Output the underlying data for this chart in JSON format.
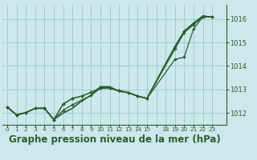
{
  "background_color": "#cce8ec",
  "grid_color": "#9ecdd4",
  "line_color": "#2d5e2d",
  "xlabel": "Graphe pression niveau de la mer (hPa)",
  "xlabel_fontsize": 8.5,
  "ylim": [
    1011.5,
    1016.6
  ],
  "yticks": [
    1012,
    1013,
    1014,
    1015,
    1016
  ],
  "xlim": [
    -0.5,
    23.5
  ],
  "xtick_labels": [
    "0",
    "1",
    "2",
    "3",
    "4",
    "5",
    "6",
    "7",
    "8",
    "9",
    "10",
    "11",
    "12",
    "13",
    "14",
    "15",
    "",
    "18",
    "19",
    "20",
    "21",
    "22",
    "23"
  ],
  "xtick_positions": [
    0,
    1,
    2,
    3,
    4,
    5,
    6,
    7,
    8,
    9,
    10,
    11,
    12,
    13,
    14,
    15,
    16,
    17,
    18,
    19,
    20,
    21,
    22
  ],
  "series": [
    {
      "x": [
        0,
        1,
        2,
        3,
        4,
        5,
        6,
        7,
        8,
        9,
        10,
        11,
        12,
        13,
        14,
        15,
        18,
        19,
        20,
        21,
        22
      ],
      "y": [
        1012.25,
        1011.92,
        1012.02,
        1012.2,
        1012.2,
        1011.72,
        1012.0,
        1012.2,
        1012.52,
        1012.75,
        1013.12,
        1013.12,
        1012.92,
        1012.87,
        1012.72,
        1012.62,
        1014.82,
        1015.48,
        1015.82,
        1016.12,
        1016.08
      ],
      "markers": false,
      "linewidth": 1.2
    },
    {
      "x": [
        0,
        1,
        2,
        3,
        4,
        5,
        6,
        7,
        8,
        9,
        10,
        11,
        12,
        13,
        14,
        15,
        18,
        19,
        20,
        21,
        22
      ],
      "y": [
        1012.25,
        1011.92,
        1012.02,
        1012.2,
        1012.2,
        1011.72,
        1012.38,
        1012.62,
        1012.72,
        1012.88,
        1013.08,
        1013.08,
        1012.95,
        1012.87,
        1012.72,
        1012.62,
        1014.82,
        1015.48,
        1015.82,
        1016.12,
        1016.08
      ],
      "markers": true,
      "linewidth": 0.9
    },
    {
      "x": [
        0,
        1,
        2,
        3,
        4,
        5,
        6,
        7,
        8,
        9,
        10,
        11,
        12,
        13,
        14,
        15,
        18,
        19,
        20,
        21,
        22
      ],
      "y": [
        1012.25,
        1011.92,
        1012.02,
        1012.2,
        1012.2,
        1011.72,
        1012.38,
        1012.62,
        1012.72,
        1012.88,
        1013.05,
        1013.05,
        1012.95,
        1012.87,
        1012.72,
        1012.62,
        1014.72,
        1015.42,
        1015.75,
        1016.08,
        1016.08
      ],
      "markers": true,
      "linewidth": 0.9
    },
    {
      "x": [
        0,
        1,
        2,
        3,
        4,
        5,
        6,
        7,
        8,
        9,
        10,
        11,
        12,
        13,
        14,
        15,
        18,
        19,
        20,
        21,
        22
      ],
      "y": [
        1012.25,
        1011.92,
        1012.02,
        1012.2,
        1012.2,
        1011.72,
        1012.12,
        1012.35,
        1012.55,
        1012.75,
        1013.05,
        1013.05,
        1012.95,
        1012.87,
        1012.72,
        1012.62,
        1014.28,
        1014.38,
        1015.58,
        1016.08,
        1016.08
      ],
      "markers": true,
      "linewidth": 0.9
    }
  ]
}
